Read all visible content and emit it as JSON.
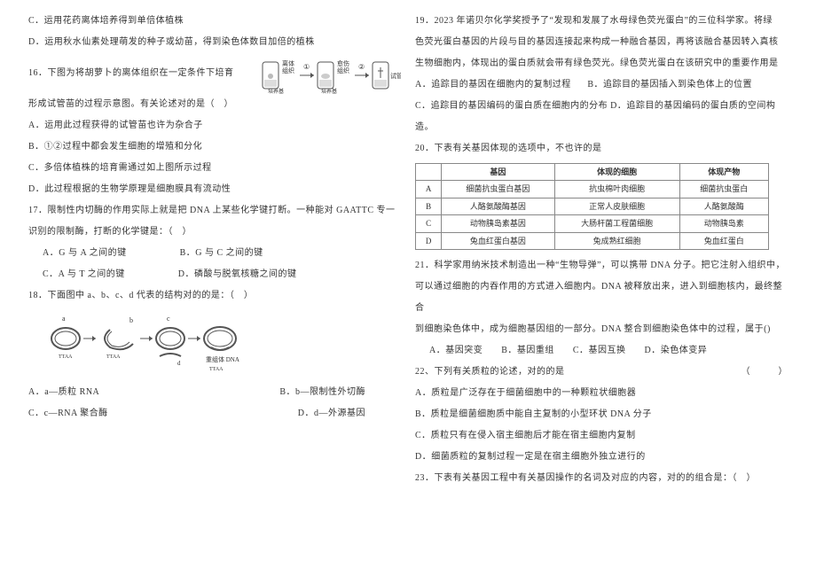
{
  "left": {
    "p15c": "C．运用花药离体培养得到单倍体植株",
    "p15d": "D．运用秋水仙素处理萌发的种子或幼苗，得到染色体数目加倍的植株",
    "p16_1": "16．下图为将胡萝卜的离体组织在一定条件下培育",
    "p16_2": "形成试管苗的过程示意图。有关论述对的是（　）",
    "p16a": "A．运用此过程获得的试管苗也许为杂合子",
    "p16b": "B．①②过程中都会发生细胞的增殖和分化",
    "p16c": "C．多倍体植株的培育需通过如上图所示过程",
    "p16d": "D．此过程根据的生物学原理是细胞膜具有流动性",
    "p17_1": "17．限制性内切酶的作用实际上就是把 DNA 上某些化学键打断。一种能对 GAATTC 专一",
    "p17_2": "识别的限制酶，打断的化学键是：（　）",
    "p17a": "A．G 与 A 之间的键",
    "p17b": "B．G 与 C 之间的键",
    "p17c": "C．A 与 T 之间的键",
    "p17d": "D．磷酸与脱氧核糖之间的键",
    "p18_1": "18．下面图中 a、b、c、d 代表的结构对的的是：（　）",
    "p18a": "A．a—质粒 RNA",
    "p18b": "B．b—限制性外切酶",
    "p18c": "C．c—RNA 聚合酶",
    "p18d": "D．d—外源基因",
    "fig1_labels": {
      "l1": "离体\n组织",
      "l2": "①",
      "l3": "愈伤\n组织",
      "l4": "②",
      "l5": "试管苗",
      "base": "培养基"
    },
    "fig2_labels": {
      "ttaa": "TTAA",
      "recomb": "重组体 DNA"
    }
  },
  "right": {
    "p19_1": "19．2023 年诺贝尔化学奖授予了“发现和发展了水母绿色荧光蛋白”的三位科学家。将绿",
    "p19_2": "色荧光蛋白基因的片段与目的基因连接起来构成一种融合基因，再将该融合基因转入真核",
    "p19_3": "生物细胞内，体现出的蛋白质就会带有绿色荧光。绿色荧光蛋白在该研究中的重要作用是",
    "p19a": "A．追踪目的基因在细胞内的复制过程",
    "p19b": "B．追踪目的基因插入到染色体上的位置",
    "p19c": "C．追踪目的基因编码的蛋白质在细胞内的分布 D．追踪目的基因编码的蛋白质的空间构造。",
    "p20": "20．下表有关基因体现的选项中，不也许的是",
    "table": {
      "headers": [
        "",
        "基因",
        "体现的细胞",
        "体现产物"
      ],
      "rows": [
        [
          "A",
          "细菌抗虫蛋白基因",
          "抗虫棉叶肉细胞",
          "细菌抗虫蛋白"
        ],
        [
          "B",
          "人酪氨酸酶基因",
          "正常人皮肤细胞",
          "人酪氨酸酶"
        ],
        [
          "C",
          "动物胰岛素基因",
          "大肠杆菌工程菌细胞",
          "动物胰岛素"
        ],
        [
          "D",
          "兔血红蛋白基因",
          "兔成熟红细胞",
          "兔血红蛋白"
        ]
      ]
    },
    "p21_1": "21．科学家用纳米技术制造出一种“生物导弹”，可以携带 DNA 分子。把它注射入组织中，",
    "p21_2": "可以通过细胞的内吞作用的方式进入细胞内。DNA 被释放出来，进入到细胞核内，最终整合",
    "p21_3": "到细胞染色体中，成为细胞基因组的一部分。DNA 整合到细胞染色体中的过程，属于()",
    "p21opts": "A．基因突变　　B．基因重组　　C．基因互换　　D．染色体变异",
    "p22": "22、下列有关质粒的论述，对的的是",
    "p22paren": "（　　　）",
    "p22a": "A．质粒是广泛存在于细菌细胞中的一种颗粒状细胞器",
    "p22b": "B．质粒是细菌细胞质中能自主复制的小型环状 DNA 分子",
    "p22c": "C．质粒只有在侵入宿主细胞后才能在宿主细胞内复制",
    "p22d": "D．细菌质粒的复制过程一定是在宿主细胞外独立进行的",
    "p23": "23．下表有关基因工程中有关基因操作的名词及对应的内容，对的的组合是：（　）"
  },
  "colors": {
    "text": "#333333",
    "border": "#888888",
    "bg": "#ffffff"
  }
}
